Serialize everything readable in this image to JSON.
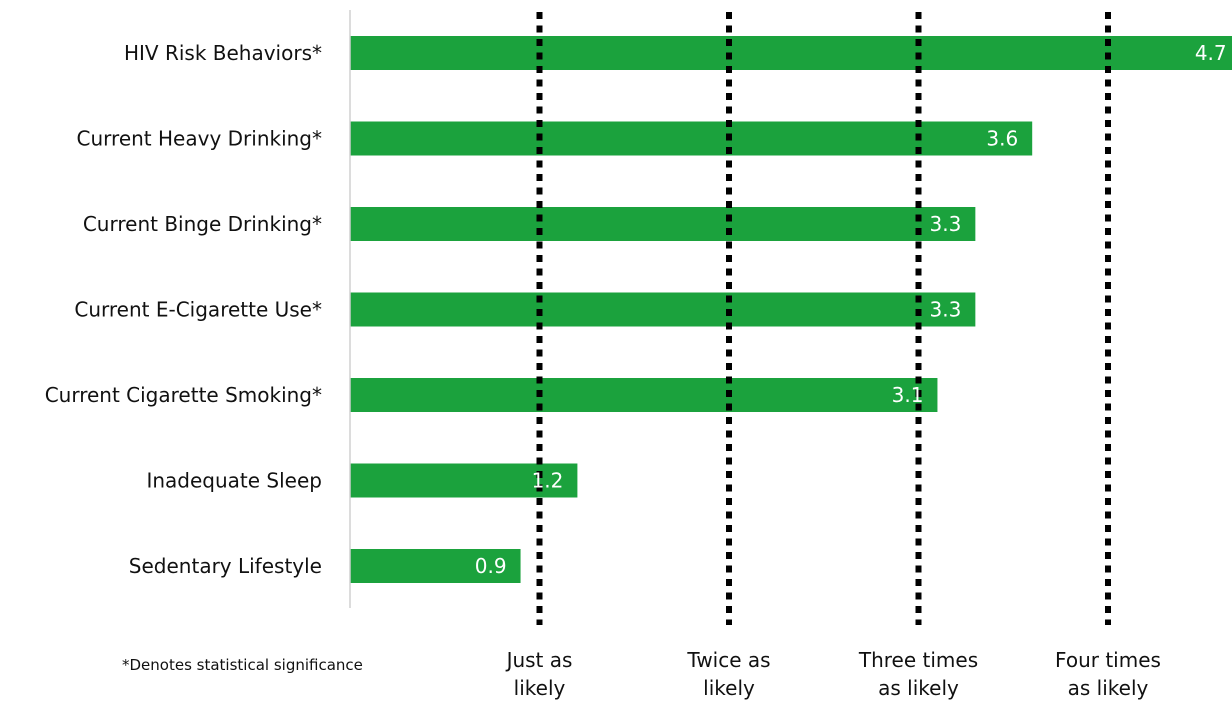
{
  "chart_data": {
    "type": "bar",
    "orientation": "horizontal",
    "categories": [
      "HIV Risk Behaviors*",
      "Current Heavy Drinking*",
      "Current Binge Drinking*",
      "Current E-Cigarette Use*",
      "Current Cigarette Smoking*",
      "Inadequate Sleep",
      "Sedentary Lifestyle"
    ],
    "values": [
      4.7,
      3.6,
      3.3,
      3.3,
      3.1,
      1.2,
      0.9
    ],
    "data_labels": [
      "4.7",
      "3.6",
      "3.3",
      "3.3",
      "3.1",
      "1.2",
      "0.9"
    ],
    "xlim": [
      0,
      4.7
    ],
    "grid": false,
    "reference_lines": [
      {
        "value": 1,
        "label": [
          "Just as",
          "likely"
        ]
      },
      {
        "value": 2,
        "label": [
          "Twice as",
          "likely"
        ]
      },
      {
        "value": 3,
        "label": [
          "Three times",
          "as likely"
        ]
      },
      {
        "value": 4,
        "label": [
          "Four times",
          "as likely"
        ]
      }
    ],
    "footnote": "*Denotes statistical significance",
    "colors": {
      "bar": "#1ba23d",
      "reference_line": "#000000",
      "axis": "#d0d0d0",
      "data_label": "#ffffff",
      "text": "#111111"
    }
  }
}
